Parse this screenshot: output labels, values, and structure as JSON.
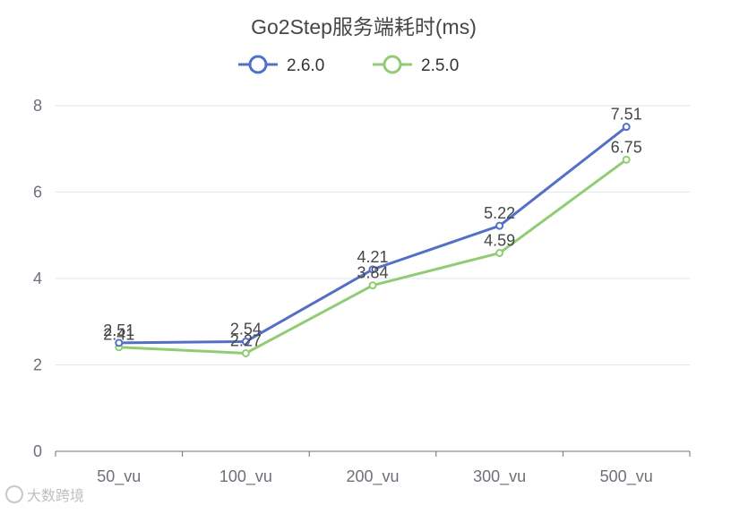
{
  "chart_data": {
    "type": "line",
    "title": "Go2Step服务端耗时(ms)",
    "categories": [
      "50_vu",
      "100_vu",
      "200_vu",
      "300_vu",
      "500_vu"
    ],
    "series": [
      {
        "name": "2.6.0",
        "color": "#5470c6",
        "values": [
          2.51,
          2.54,
          4.21,
          5.22,
          7.51
        ]
      },
      {
        "name": "2.5.0",
        "color": "#91cc75",
        "values": [
          2.41,
          2.27,
          3.84,
          4.59,
          6.75
        ]
      }
    ],
    "yticks": [
      0,
      2,
      4,
      6,
      8
    ],
    "ylim": [
      0,
      8
    ],
    "grid": true,
    "legend": "top-center",
    "data_labels": true
  },
  "watermark": {
    "text": "大数跨境",
    "icon": "logo-icon"
  }
}
